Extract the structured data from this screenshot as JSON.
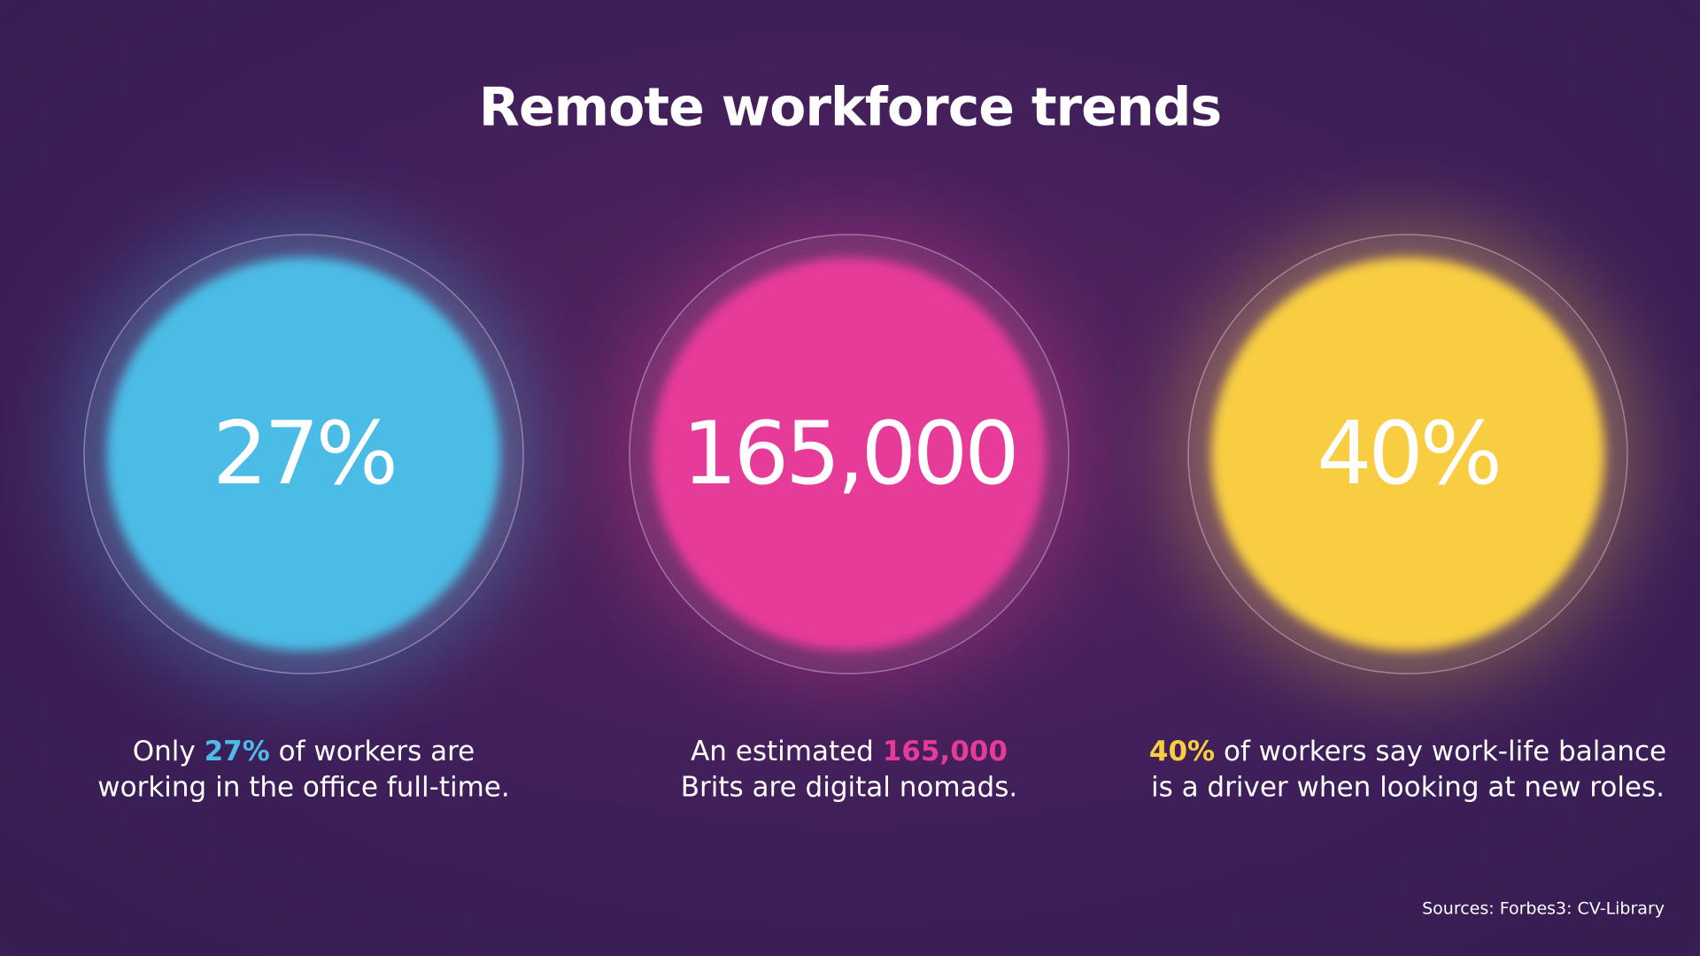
{
  "title": "Remote workforce trends",
  "stats": [
    {
      "figure": "27%",
      "color": "#4cbce6",
      "caption": {
        "line1": [
          "Only ",
          "27%",
          " of workers are"
        ],
        "line2": "working in the office full-time."
      }
    },
    {
      "figure": "165,000",
      "color": "#e63a98",
      "caption": {
        "line1": [
          "An estimated ",
          "165,000",
          ""
        ],
        "line2": "Brits are digital nomads."
      }
    },
    {
      "figure": "40%",
      "color": "#f8cd42",
      "caption": {
        "line1": [
          "",
          "40%",
          " of workers say work-life balance"
        ],
        "line2": "is a driver when looking at new roles."
      }
    }
  ],
  "sources": "Sources: Forbes3: CV-Library"
}
